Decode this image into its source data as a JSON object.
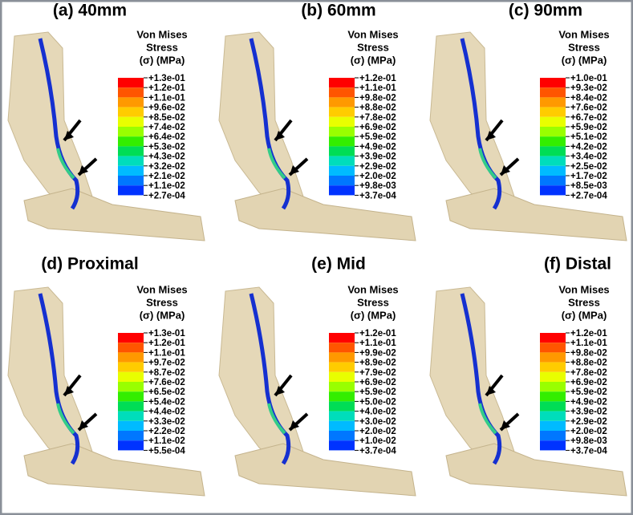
{
  "panels": [
    {
      "title": "(a) 40mm",
      "legend_title": [
        "Von Mises",
        "Stress",
        "(σ) (MPa)"
      ],
      "labels": [
        "+1.3e-01",
        "+1.2e-01",
        "+1.1e-01",
        "+9.6e-02",
        "+8.5e-02",
        "+7.4e-02",
        "+6.4e-02",
        "+5.3e-02",
        "+4.3e-02",
        "+3.2e-02",
        "+2.1e-02",
        "+1.1e-02",
        "+2.7e-04"
      ]
    },
    {
      "title": "(b) 60mm",
      "legend_title": [
        "Von Mises",
        "Stress",
        "(σ) (MPa)"
      ],
      "labels": [
        "+1.2e-01",
        "+1.1e-01",
        "+9.8e-02",
        "+8.8e-02",
        "+7.8e-02",
        "+6.9e-02",
        "+5.9e-02",
        "+4.9e-02",
        "+3.9e-02",
        "+2.9e-02",
        "+2.0e-02",
        "+9.8e-03",
        "+3.7e-04"
      ]
    },
    {
      "title": "(c) 90mm",
      "legend_title": [
        "Von Mises",
        "Stress",
        "(σ) (MPa)"
      ],
      "labels": [
        "+1.0e-01",
        "+9.3e-02",
        "+8.4e-02",
        "+7.6e-02",
        "+6.7e-02",
        "+5.9e-02",
        "+5.1e-02",
        "+4.2e-02",
        "+3.4e-02",
        "+2.5e-02",
        "+1.7e-02",
        "+8.5e-03",
        "+2.7e-04"
      ]
    },
    {
      "title": "(d) Proximal",
      "legend_title": [
        "Von Mises",
        "Stress",
        "(σ) (MPa)"
      ],
      "labels": [
        "+1.3e-01",
        "+1.2e-01",
        "+1.1e-01",
        "+9.7e-02",
        "+8.7e-02",
        "+7.6e-02",
        "+6.5e-02",
        "+5.4e-02",
        "+4.4e-02",
        "+3.3e-02",
        "+2.2e-02",
        "+1.1e-02",
        "+5.5e-04"
      ]
    },
    {
      "title": "(e) Mid",
      "legend_title": [
        "Von Mises",
        "Stress",
        "(σ) (MPa)"
      ],
      "labels": [
        "+1.2e-01",
        "+1.1e-01",
        "+9.9e-02",
        "+8.9e-02",
        "+7.9e-02",
        "+6.9e-02",
        "+5.9e-02",
        "+5.0e-02",
        "+4.0e-02",
        "+3.0e-02",
        "+2.0e-02",
        "+1.0e-02",
        "+3.7e-04"
      ]
    },
    {
      "title": "(f) Distal",
      "legend_title": [
        "Von Mises",
        "Stress",
        "(σ) (MPa)"
      ],
      "labels": [
        "+1.2e-01",
        "+1.1e-01",
        "+9.8e-02",
        "+8.8e-02",
        "+7.8e-02",
        "+6.9e-02",
        "+5.9e-02",
        "+4.9e-02",
        "+3.9e-02",
        "+2.9e-02",
        "+2.0e-02",
        "+9.8e-03",
        "+3.7e-04"
      ]
    }
  ]
}
